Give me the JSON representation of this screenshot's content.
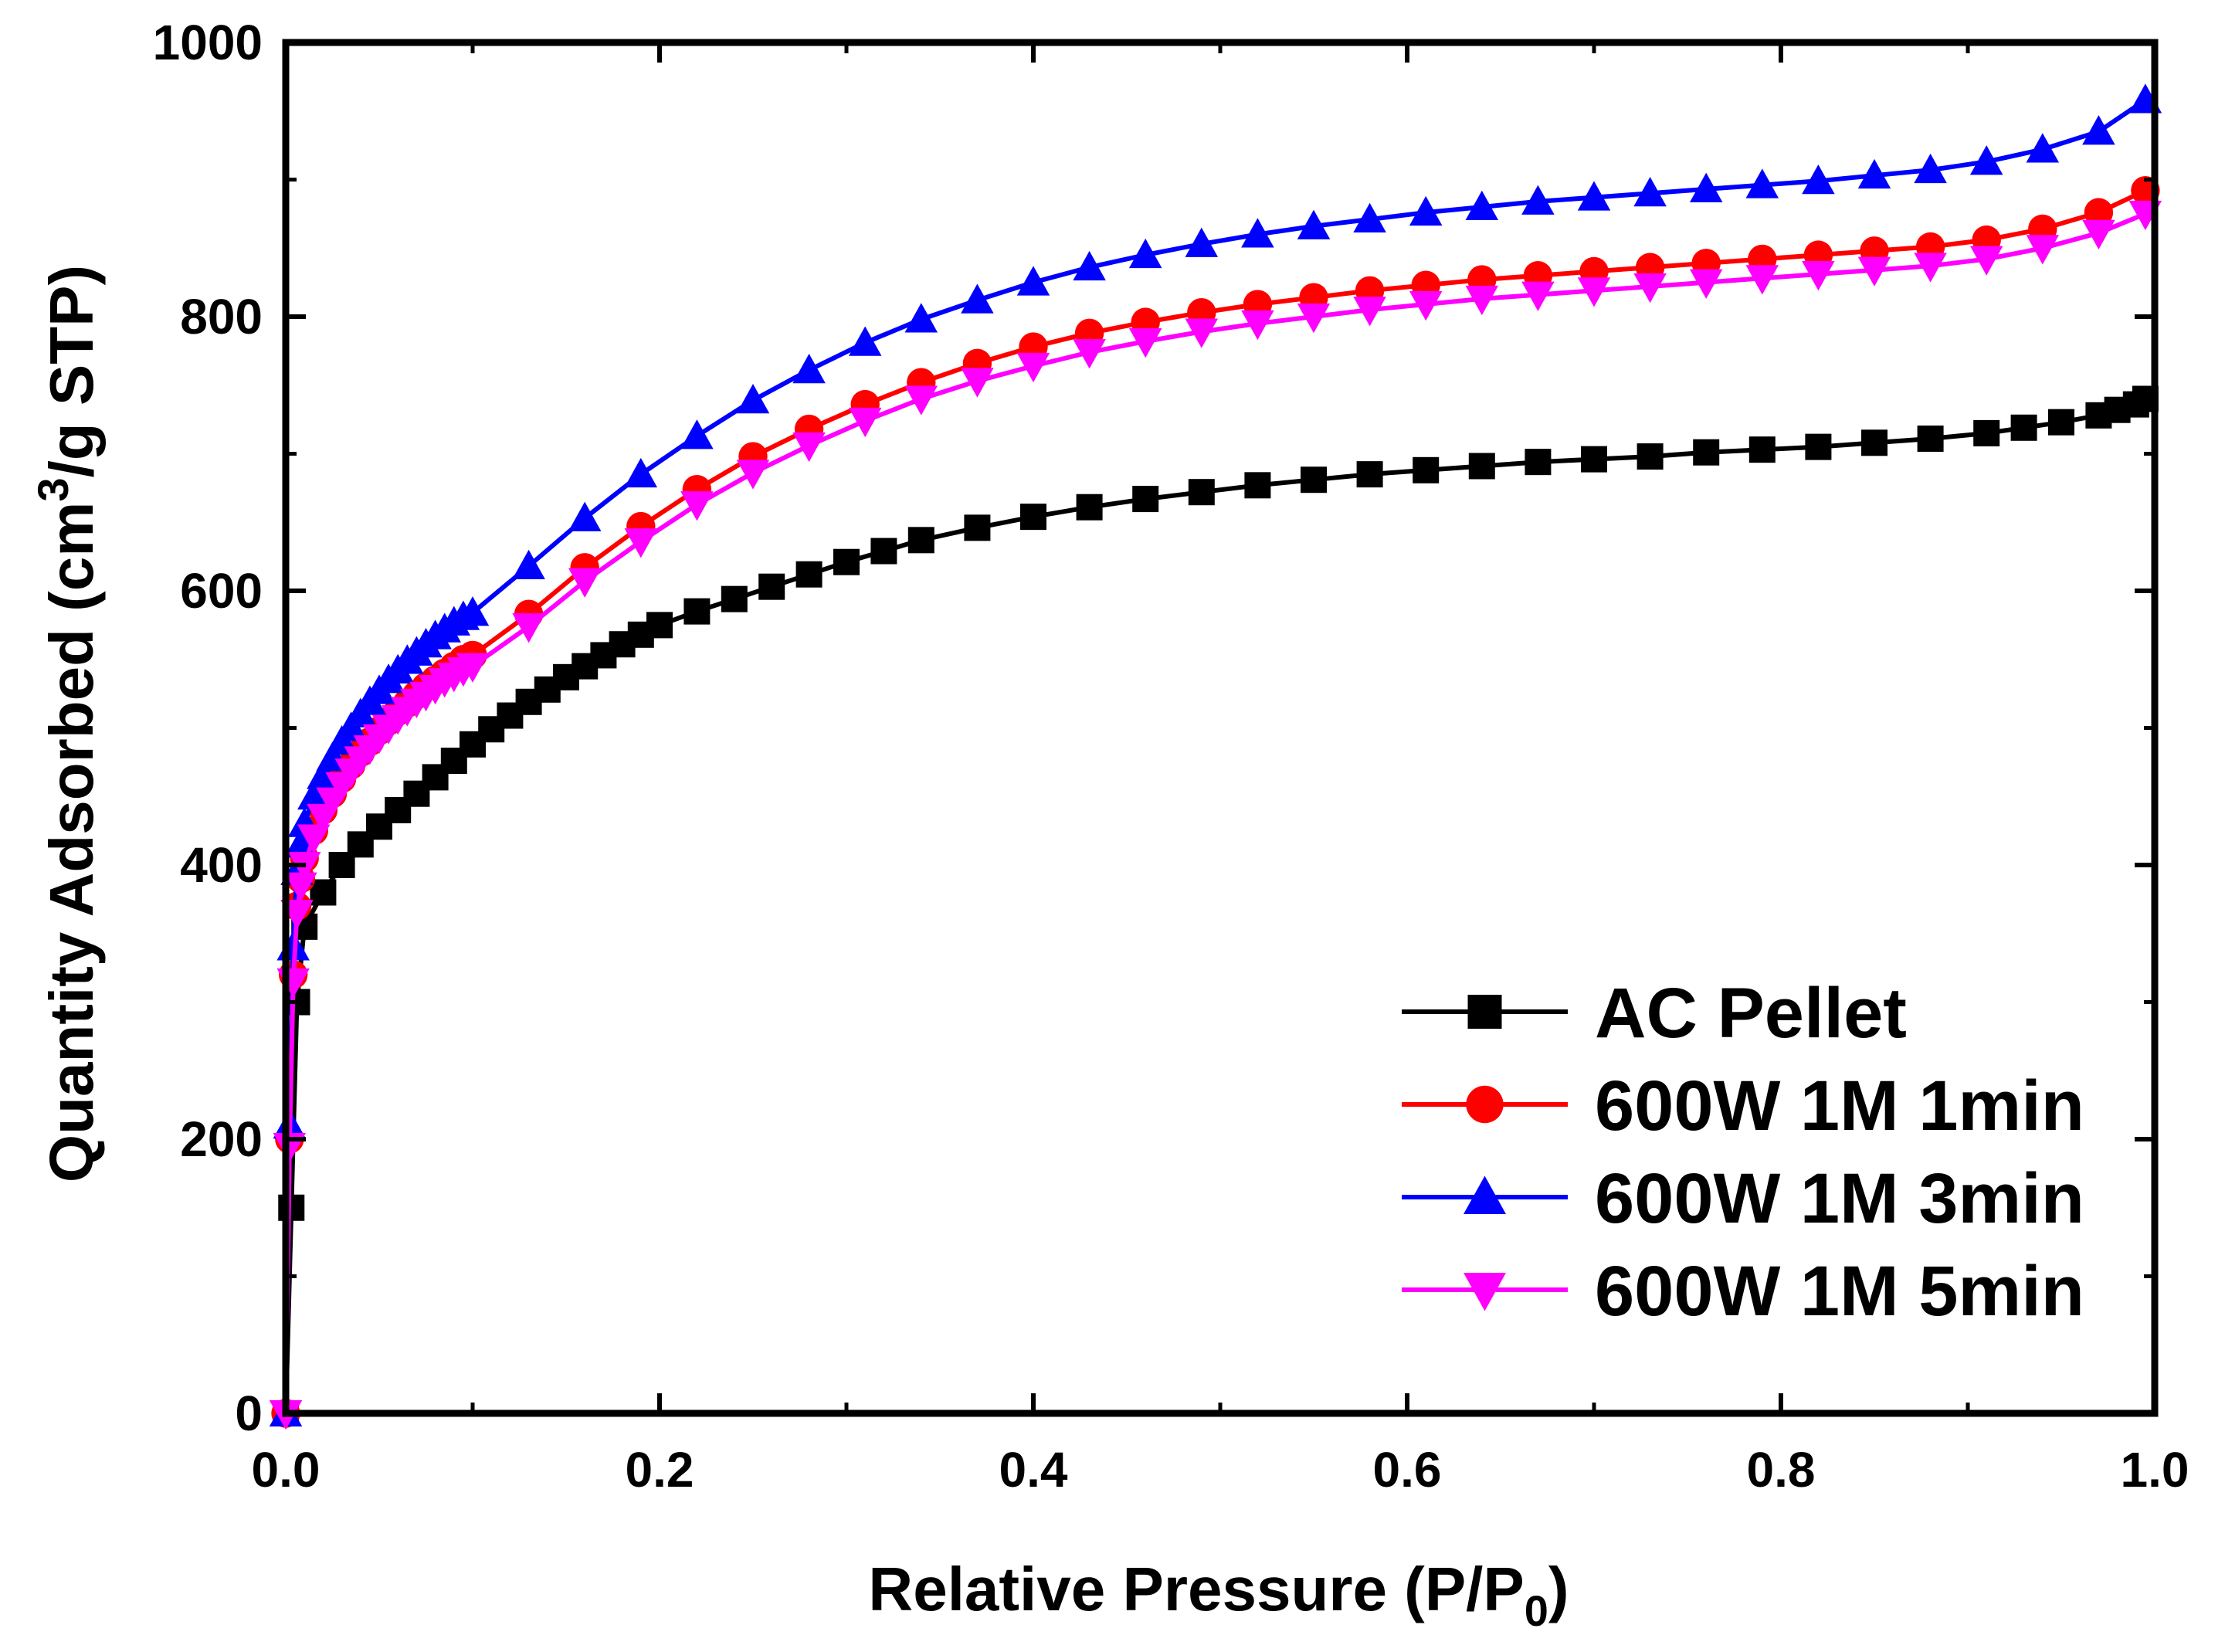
{
  "chart_data": {
    "type": "line",
    "title": "",
    "xlabel": "Relative Pressure (P/P",
    "xlabel_sub": "0",
    "xlabel_end": ")",
    "ylabel": "Quantity Adsorbed (cm",
    "ylabel_sup": "3",
    "ylabel_end": "/g STP)",
    "xlim": [
      0.0,
      1.0
    ],
    "ylim": [
      0,
      1000
    ],
    "xticks": [
      "0.0",
      "0.2",
      "0.4",
      "0.6",
      "0.8",
      "1.0"
    ],
    "yticks": [
      "0",
      "200",
      "400",
      "600",
      "800",
      "1000"
    ],
    "legend_position": "bottom-right",
    "series": [
      {
        "name": "AC Pellet",
        "color": "#000000",
        "marker": "square",
        "x": [
          0.0,
          0.003,
          0.006,
          0.01,
          0.02,
          0.03,
          0.04,
          0.05,
          0.06,
          0.07,
          0.08,
          0.09,
          0.1,
          0.11,
          0.12,
          0.13,
          0.14,
          0.15,
          0.16,
          0.17,
          0.18,
          0.19,
          0.2,
          0.22,
          0.24,
          0.26,
          0.28,
          0.3,
          0.32,
          0.34,
          0.37,
          0.4,
          0.43,
          0.46,
          0.49,
          0.52,
          0.55,
          0.58,
          0.61,
          0.64,
          0.67,
          0.7,
          0.73,
          0.76,
          0.79,
          0.82,
          0.85,
          0.88,
          0.91,
          0.93,
          0.95,
          0.97,
          0.98,
          0.99,
          0.995
        ],
        "y": [
          0,
          150,
          300,
          355,
          380,
          400,
          415,
          428,
          440,
          452,
          464,
          476,
          488,
          499,
          509,
          519,
          528,
          537,
          545,
          553,
          561,
          568,
          575,
          585,
          594,
          603,
          612,
          621,
          629,
          637,
          646,
          654,
          661,
          667,
          672,
          677,
          681,
          685,
          688,
          691,
          694,
          696,
          698,
          701,
          703,
          705,
          708,
          711,
          715,
          719,
          723,
          728,
          732,
          736,
          740
        ]
      },
      {
        "name": "600W 1M 1min",
        "color": "#ff0000",
        "marker": "circle",
        "x": [
          0.0,
          0.002,
          0.004,
          0.006,
          0.008,
          0.01,
          0.015,
          0.02,
          0.025,
          0.03,
          0.035,
          0.04,
          0.045,
          0.05,
          0.055,
          0.06,
          0.065,
          0.07,
          0.075,
          0.08,
          0.085,
          0.09,
          0.095,
          0.1,
          0.13,
          0.16,
          0.19,
          0.22,
          0.25,
          0.28,
          0.31,
          0.34,
          0.37,
          0.4,
          0.43,
          0.46,
          0.49,
          0.52,
          0.55,
          0.58,
          0.61,
          0.64,
          0.67,
          0.7,
          0.73,
          0.76,
          0.79,
          0.82,
          0.85,
          0.88,
          0.91,
          0.94,
          0.97,
          0.995
        ],
        "y": [
          0,
          200,
          320,
          370,
          390,
          405,
          425,
          440,
          452,
          463,
          473,
          482,
          490,
          498,
          505,
          512,
          518,
          524,
          530,
          535,
          540,
          545,
          550,
          553,
          583,
          617,
          647,
          674,
          698,
          718,
          736,
          752,
          766,
          778,
          788,
          796,
          803,
          809,
          814,
          819,
          823,
          827,
          830,
          833,
          836,
          839,
          842,
          845,
          848,
          851,
          856,
          864,
          876,
          892
        ]
      },
      {
        "name": "600W 1M 3min",
        "color": "#0000ff",
        "marker": "triangle-up",
        "x": [
          0.0,
          0.002,
          0.004,
          0.006,
          0.008,
          0.01,
          0.015,
          0.02,
          0.025,
          0.03,
          0.035,
          0.04,
          0.045,
          0.05,
          0.055,
          0.06,
          0.065,
          0.07,
          0.075,
          0.08,
          0.085,
          0.09,
          0.095,
          0.1,
          0.13,
          0.16,
          0.19,
          0.22,
          0.25,
          0.28,
          0.31,
          0.34,
          0.37,
          0.4,
          0.43,
          0.46,
          0.49,
          0.52,
          0.55,
          0.58,
          0.61,
          0.64,
          0.67,
          0.7,
          0.73,
          0.76,
          0.79,
          0.82,
          0.85,
          0.88,
          0.91,
          0.94,
          0.97,
          0.995
        ],
        "y": [
          0,
          210,
          340,
          395,
          415,
          430,
          450,
          465,
          478,
          490,
          500,
          510,
          519,
          527,
          535,
          542,
          549,
          555,
          561,
          567,
          572,
          577,
          581,
          584,
          618,
          653,
          685,
          713,
          739,
          761,
          781,
          798,
          812,
          825,
          836,
          845,
          853,
          860,
          866,
          871,
          876,
          880,
          884,
          887,
          890,
          893,
          896,
          899,
          903,
          907,
          913,
          922,
          935,
          958
        ]
      },
      {
        "name": "600W 1M 5min",
        "color": "#ff00ff",
        "marker": "triangle-down",
        "x": [
          0.0,
          0.002,
          0.004,
          0.006,
          0.008,
          0.01,
          0.015,
          0.02,
          0.025,
          0.03,
          0.035,
          0.04,
          0.045,
          0.05,
          0.055,
          0.06,
          0.065,
          0.07,
          0.075,
          0.08,
          0.085,
          0.09,
          0.095,
          0.1,
          0.13,
          0.16,
          0.19,
          0.22,
          0.25,
          0.28,
          0.31,
          0.34,
          0.37,
          0.4,
          0.43,
          0.46,
          0.49,
          0.52,
          0.55,
          0.58,
          0.61,
          0.64,
          0.67,
          0.7,
          0.73,
          0.76,
          0.79,
          0.82,
          0.85,
          0.88,
          0.91,
          0.94,
          0.97,
          0.995
        ],
        "y": [
          0,
          195,
          315,
          365,
          385,
          400,
          420,
          435,
          447,
          458,
          468,
          477,
          485,
          493,
          500,
          507,
          513,
          519,
          524,
          529,
          534,
          538,
          542,
          545,
          574,
          607,
          636,
          663,
          686,
          706,
          724,
          740,
          753,
          764,
          774,
          782,
          789,
          795,
          800,
          805,
          809,
          813,
          816,
          819,
          822,
          825,
          828,
          831,
          834,
          837,
          842,
          850,
          861,
          875
        ]
      }
    ]
  }
}
